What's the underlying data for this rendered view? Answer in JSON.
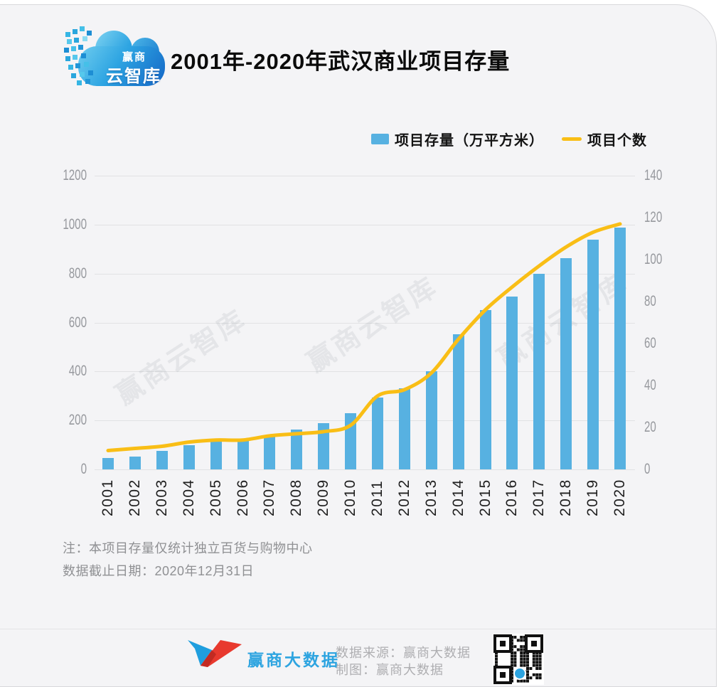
{
  "page": {
    "title": "2001年-2020年武汉商业项目存量"
  },
  "logo": {
    "line1": "赢商",
    "line2": "云智库"
  },
  "legend": {
    "items": [
      {
        "label": "项目存量（万平方米）",
        "color": "#57b1e1",
        "type": "bar"
      },
      {
        "label": "项目个数",
        "color": "#f9be16",
        "type": "line"
      }
    ]
  },
  "chart_data": {
    "type": "bar",
    "subtype": "bar+line dual-axis combo",
    "title": "2001年-2020年武汉商业项目存量",
    "categories": [
      "2001",
      "2002",
      "2003",
      "2004",
      "2005",
      "2006",
      "2007",
      "2008",
      "2009",
      "2010",
      "2011",
      "2012",
      "2013",
      "2014",
      "2015",
      "2016",
      "2017",
      "2018",
      "2019",
      "2020"
    ],
    "series": [
      {
        "name": "项目存量（万平方米）",
        "type": "bar",
        "axis": "left",
        "color": "#57b1e1",
        "values": [
          48,
          53,
          77,
          100,
          117,
          115,
          141,
          164,
          188,
          231,
          295,
          330,
          402,
          551,
          650,
          705,
          798,
          862,
          940,
          988
        ]
      },
      {
        "name": "项目个数",
        "type": "line",
        "axis": "right",
        "color": "#f9be16",
        "values": [
          9,
          10,
          11,
          13,
          14,
          14,
          16,
          17,
          18,
          21,
          35,
          38,
          46,
          62,
          76,
          87,
          97,
          106,
          113,
          117
        ]
      }
    ],
    "left_axis": {
      "ticks": [
        0,
        200,
        400,
        600,
        800,
        1000,
        1200
      ],
      "min": 0,
      "max": 1200
    },
    "right_axis": {
      "ticks": [
        0,
        20,
        40,
        60,
        80,
        100,
        120,
        140
      ],
      "min": 0,
      "max": 140
    },
    "grid": true,
    "legend_position": "top"
  },
  "watermark": {
    "text": "赢商云智库"
  },
  "notes": {
    "line1": "注：本项目存量仅统计独立百货与购物中心",
    "line2": "数据截止日期：2020年12月31日"
  },
  "footer": {
    "brand": "赢商大数据",
    "source": "数据来源：赢商大数据",
    "credit": "制图：赢商大数据",
    "qr_label": "qr-code"
  }
}
